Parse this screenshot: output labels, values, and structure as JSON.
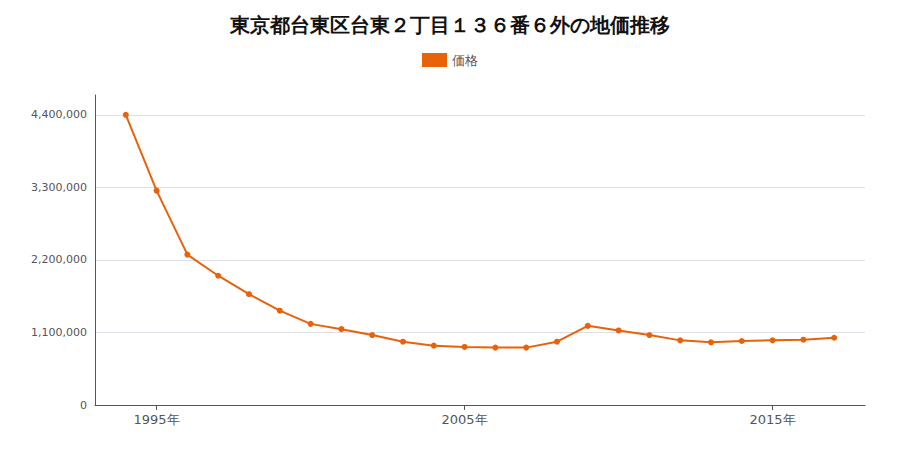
{
  "chart_data": {
    "type": "line",
    "title": "東京都台東区台東２丁目１３６番６外の地価推移",
    "x": [
      1994,
      1995,
      1996,
      1997,
      1998,
      1999,
      2000,
      2001,
      2002,
      2003,
      2004,
      2005,
      2006,
      2007,
      2008,
      2009,
      2010,
      2011,
      2012,
      2013,
      2014,
      2015,
      2016,
      2017
    ],
    "series": [
      {
        "name": "価格",
        "color": "#e8620a",
        "marker": "circle",
        "values": [
          4400000,
          3250000,
          2280000,
          1960000,
          1680000,
          1430000,
          1230000,
          1150000,
          1060000,
          960000,
          900000,
          880000,
          870000,
          870000,
          960000,
          1200000,
          1130000,
          1060000,
          980000,
          950000,
          970000,
          980000,
          990000,
          1020000
        ]
      }
    ],
    "xlim": [
      1993,
      2018
    ],
    "xticks": [
      {
        "value": 1995,
        "label": "1995年"
      },
      {
        "value": 2005,
        "label": "2005年"
      },
      {
        "value": 2015,
        "label": "2015年"
      }
    ],
    "ylim": [
      0,
      4700000
    ],
    "yticks": [
      0,
      {
        "value": 1100000,
        "label": "1,100,000"
      },
      {
        "value": 2200000,
        "label": "2,200,000"
      },
      {
        "value": 3300000,
        "label": "3,300,000"
      },
      {
        "value": 4400000,
        "label": "4,400,000"
      }
    ],
    "grid": true,
    "legend": "top"
  }
}
